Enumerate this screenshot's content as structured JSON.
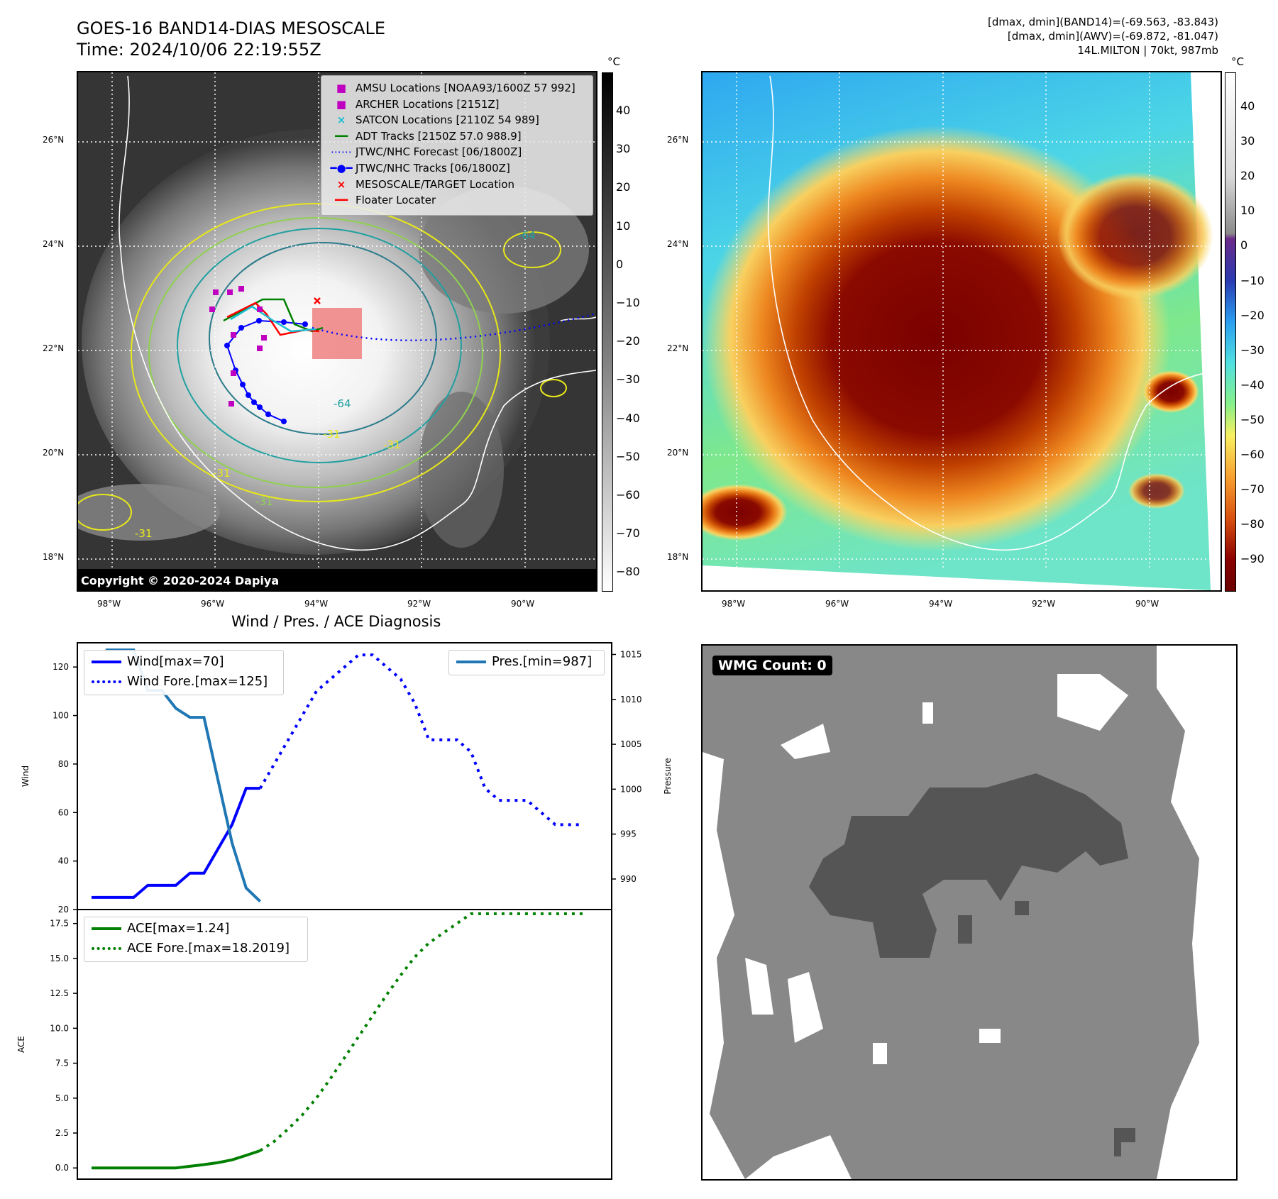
{
  "header": {
    "title_line1": "GOES-16 BAND14-DIAS MESOSCALE",
    "title_line2": "Time: 2024/10/06 22:19:55Z",
    "info_line1": "[dmax, dmin](BAND14)=(-69.563, -83.843)",
    "info_line2": "[dmax, dmin](AWV)=(-69.872, -81.047)",
    "info_line3": "14L.MILTON | 70kt, 987mb"
  },
  "map": {
    "lat_labels": [
      "26°N",
      "24°N",
      "22°N",
      "20°N",
      "18°N"
    ],
    "lon_labels": [
      "98°W",
      "96°W",
      "94°W",
      "92°W",
      "90°W"
    ],
    "copyright": "Copyright © 2020-2024 Dapiya",
    "contour_labels": [
      "-31",
      "-64",
      "-31",
      "-31",
      "-31",
      "-31",
      "-64"
    ],
    "legend": [
      {
        "label": "AMSU Locations [NOAA93/1600Z 57 992]",
        "marker": "square",
        "color": "#c000c0"
      },
      {
        "label": "ARCHER Locations [2151Z]",
        "marker": "square",
        "color": "#c000c0"
      },
      {
        "label": "SATCON Locations [2110Z 54 989]",
        "marker": "x",
        "color": "#17becf"
      },
      {
        "label": "ADT Tracks [2150Z 57.0 988.9]",
        "marker": "line",
        "color": "#008000"
      },
      {
        "label": "JTWC/NHC Forecast [06/1800Z]",
        "marker": "dotted",
        "color": "#0000ff"
      },
      {
        "label": "JTWC/NHC Tracks [06/1800Z]",
        "marker": "line-dot",
        "color": "#0000ff"
      },
      {
        "label": "MESOSCALE/TARGET Location",
        "marker": "x",
        "color": "#ff0000"
      },
      {
        "label": "Floater Locater",
        "marker": "line",
        "color": "#ff0000"
      }
    ]
  },
  "colorbars": {
    "unit": "°C",
    "left_ticks": [
      "40",
      "30",
      "20",
      "10",
      "0",
      "−10",
      "−20",
      "−30",
      "−40",
      "−50",
      "−60",
      "−70",
      "−80"
    ],
    "right_ticks": [
      "40",
      "30",
      "20",
      "10",
      "0",
      "−10",
      "−20",
      "−30",
      "−40",
      "−50",
      "−60",
      "−70",
      "−80",
      "−90"
    ]
  },
  "wmg": {
    "label": "WMG Count: 0"
  },
  "chart_data": [
    {
      "type": "line",
      "title": "Wind / Pres. / ACE Diagnosis",
      "ylabel": "Wind",
      "y2label": "Pressure",
      "ylim": [
        20,
        130
      ],
      "y2lim": [
        986.6,
        1016.3
      ],
      "yticks": [
        "120",
        "100",
        "80",
        "60",
        "40",
        "20"
      ],
      "y2ticks": [
        "1015",
        "1010",
        "1005",
        "1000",
        "995",
        "990"
      ],
      "series": [
        {
          "name": "Wind[max=70]",
          "axis": "left",
          "style": "solid",
          "color": "#0000ff",
          "x": [
            0,
            1,
            2,
            3,
            4,
            5,
            6,
            7,
            8,
            9,
            10,
            11,
            12
          ],
          "values": [
            25,
            25,
            25,
            25,
            30,
            30,
            30,
            35,
            35,
            45,
            55,
            70,
            70
          ]
        },
        {
          "name": "Wind Fore.[max=125]",
          "axis": "left",
          "style": "dotted",
          "color": "#0000ff",
          "x": [
            12,
            13,
            14,
            15,
            16,
            17,
            18,
            19,
            20,
            21,
            22,
            23,
            24,
            25,
            26,
            27,
            28,
            29,
            30,
            31,
            32,
            33,
            34,
            35
          ],
          "values": [
            70,
            80,
            90,
            100,
            110,
            115,
            120,
            125,
            125,
            120,
            115,
            105,
            90,
            90,
            90,
            85,
            70,
            65,
            65,
            65,
            60,
            55,
            55,
            55
          ]
        },
        {
          "name": "Pres.[min=987]",
          "axis": "right",
          "style": "solid",
          "color": "#1f77b4",
          "x": [
            1,
            2,
            3,
            4,
            5,
            6,
            7,
            8,
            9,
            10,
            11,
            12
          ],
          "values": [
            1015.5,
            1015.5,
            1015.5,
            1011,
            1011,
            1009,
            1008,
            1008,
            1001,
            994,
            989,
            987.5
          ]
        }
      ]
    },
    {
      "type": "line",
      "ylabel": "ACE",
      "ylim": [
        -0.8,
        18.5
      ],
      "yticks": [
        "17.5",
        "15.0",
        "12.5",
        "10.0",
        "7.5",
        "5.0",
        "2.5",
        "0.0"
      ],
      "series": [
        {
          "name": "ACE[max=1.24]",
          "style": "solid",
          "color": "#008000",
          "x": [
            0,
            1,
            2,
            3,
            4,
            5,
            6,
            7,
            8,
            9,
            10,
            11,
            12
          ],
          "values": [
            0,
            0,
            0,
            0,
            0,
            0,
            0,
            0.12,
            0.24,
            0.38,
            0.58,
            0.9,
            1.24
          ]
        },
        {
          "name": "ACE Fore.[max=18.2019]",
          "style": "dotted",
          "color": "#008000",
          "x": [
            12,
            13,
            14,
            15,
            16,
            17,
            18,
            19,
            20,
            21,
            22,
            23,
            24,
            25,
            26,
            27,
            28,
            29,
            30,
            31,
            32,
            33,
            34,
            35
          ],
          "values": [
            1.24,
            1.9,
            2.8,
            3.8,
            5.0,
            6.4,
            7.9,
            9.4,
            10.9,
            12.4,
            13.8,
            15.1,
            16.1,
            16.8,
            17.5,
            18.2,
            18.2,
            18.2,
            18.2,
            18.2,
            18.2,
            18.2,
            18.2,
            18.2
          ]
        }
      ]
    }
  ]
}
